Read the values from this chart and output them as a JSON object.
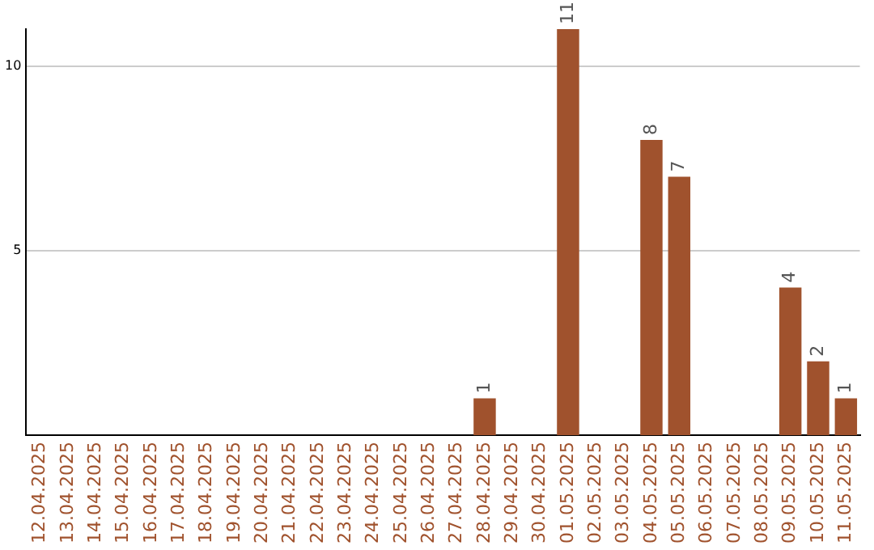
{
  "chart_data": {
    "type": "bar",
    "categories": [
      "12.04.2025",
      "13.04.2025",
      "14.04.2025",
      "15.04.2025",
      "16.04.2025",
      "17.04.2025",
      "18.04.2025",
      "19.04.2025",
      "20.04.2025",
      "21.04.2025",
      "22.04.2025",
      "23.04.2025",
      "24.04.2025",
      "25.04.2025",
      "26.04.2025",
      "27.04.2025",
      "28.04.2025",
      "29.04.2025",
      "30.04.2025",
      "01.05.2025",
      "02.05.2025",
      "03.05.2025",
      "04.05.2025",
      "05.05.2025",
      "06.05.2025",
      "07.05.2025",
      "08.05.2025",
      "09.05.2025",
      "10.05.2025",
      "11.05.2025"
    ],
    "values": [
      0,
      0,
      0,
      0,
      0,
      0,
      0,
      0,
      0,
      0,
      0,
      0,
      0,
      0,
      0,
      0,
      1,
      0,
      0,
      11,
      0,
      0,
      8,
      7,
      0,
      0,
      0,
      4,
      2,
      1
    ],
    "value_labels": [
      null,
      null,
      null,
      null,
      null,
      null,
      null,
      null,
      null,
      null,
      null,
      null,
      null,
      null,
      null,
      null,
      "1",
      null,
      null,
      "11",
      null,
      null,
      "8",
      "7",
      null,
      null,
      null,
      "4",
      "2",
      "1"
    ],
    "color": "#a0522d",
    "ylim": [
      0,
      11
    ],
    "yticks": [
      5,
      10
    ],
    "grid": "y",
    "legend": false
  }
}
